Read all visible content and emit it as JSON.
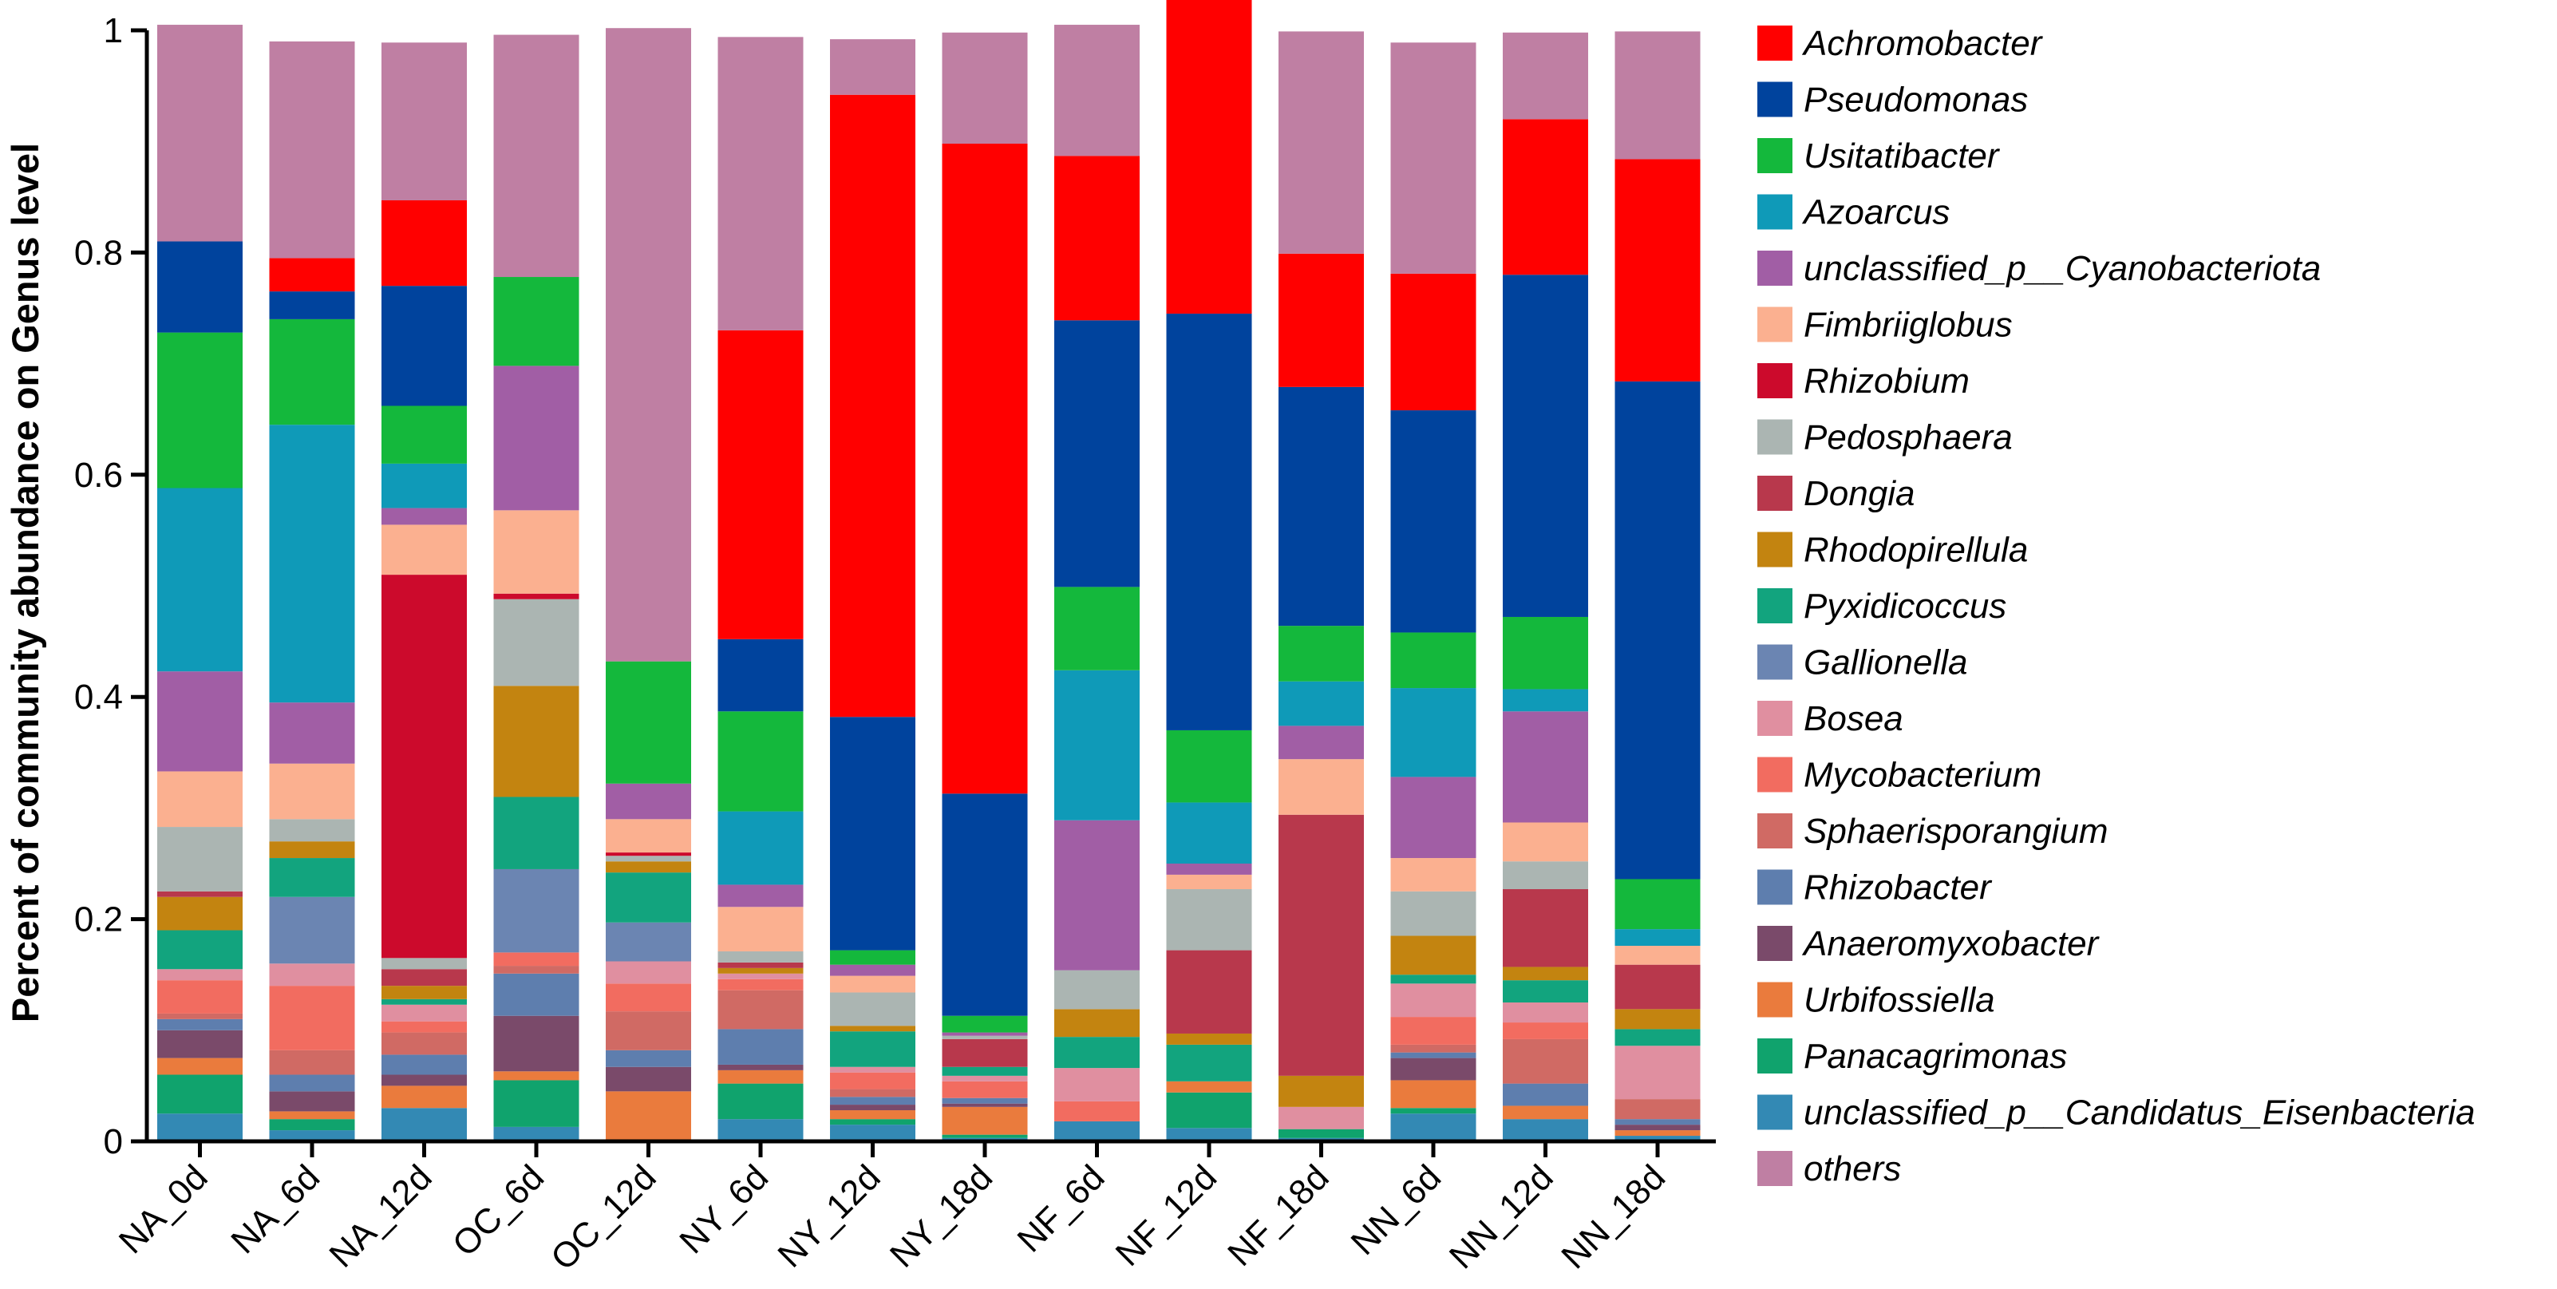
{
  "chart_data": {
    "type": "bar",
    "stacked": true,
    "title": "",
    "xlabel": "",
    "ylabel": "Percent of community abundance on Genus level",
    "ylim": [
      0,
      1
    ],
    "yticks": [
      0,
      0.2,
      0.4,
      0.6,
      0.8,
      1
    ],
    "ytick_labels": [
      "0",
      "0.2",
      "0.4",
      "0.6",
      "0.8",
      "1"
    ],
    "legend_position": "right",
    "categories": [
      "NA_0d",
      "NA_6d",
      "NA_12d",
      "OC_6d",
      "OC_12d",
      "NY_6d",
      "NY_12d",
      "NY_18d",
      "NF_6d",
      "NF_12d",
      "NF_18d",
      "NN_6d",
      "NN_12d",
      "NN_18d"
    ],
    "series": [
      {
        "name": "unclassified_p__Candidatus_Eisenbacteria",
        "color": "#3389b4",
        "values": [
          0.025,
          0.01,
          0.03,
          0.013,
          0.0,
          0.02,
          0.015,
          0.003,
          0.018,
          0.012,
          0.003,
          0.025,
          0.02,
          0.005
        ]
      },
      {
        "name": "Panacagrimonas",
        "color": "#10a36d",
        "values": [
          0.035,
          0.01,
          0.0,
          0.042,
          0.0,
          0.032,
          0.005,
          0.003,
          0.0,
          0.032,
          0.008,
          0.005,
          0.0,
          0.0
        ]
      },
      {
        "name": "Urbifossiella",
        "color": "#ea7b3d",
        "values": [
          0.015,
          0.007,
          0.02,
          0.008,
          0.045,
          0.012,
          0.008,
          0.025,
          0.0,
          0.01,
          0.0,
          0.025,
          0.012,
          0.005
        ]
      },
      {
        "name": "Anaeromyxobacter",
        "color": "#7a4a6a",
        "values": [
          0.025,
          0.018,
          0.01,
          0.05,
          0.022,
          0.005,
          0.005,
          0.003,
          0.0,
          0.0,
          0.0,
          0.02,
          0.0,
          0.005
        ]
      },
      {
        "name": "Rhizobacter",
        "color": "#5e7eae",
        "values": [
          0.01,
          0.015,
          0.018,
          0.038,
          0.015,
          0.032,
          0.007,
          0.005,
          0.0,
          0.0,
          0.0,
          0.005,
          0.02,
          0.005
        ]
      },
      {
        "name": "Sphaerisporangium",
        "color": "#d06a64",
        "values": [
          0.005,
          0.022,
          0.02,
          0.007,
          0.035,
          0.035,
          0.007,
          0.0,
          0.0,
          0.0,
          0.0,
          0.007,
          0.04,
          0.018
        ]
      },
      {
        "name": "Mycobacterium",
        "color": "#f26c60",
        "values": [
          0.03,
          0.058,
          0.01,
          0.012,
          0.025,
          0.01,
          0.015,
          0.015,
          0.018,
          0.0,
          0.0,
          0.025,
          0.015,
          0.0
        ]
      },
      {
        "name": "Bosea",
        "color": "#e08fa0",
        "values": [
          0.01,
          0.02,
          0.015,
          0.0,
          0.02,
          0.005,
          0.005,
          0.005,
          0.03,
          0.0,
          0.02,
          0.03,
          0.018,
          0.048
        ]
      },
      {
        "name": "Gallionella",
        "color": "#6b85b2",
        "values": [
          0.0,
          0.06,
          0.0,
          0.075,
          0.035,
          0.0,
          0.0,
          0.0,
          0.0,
          0.0,
          0.0,
          0.0,
          0.0,
          0.0
        ]
      },
      {
        "name": "Pyxidicoccus",
        "color": "#12a47e",
        "values": [
          0.035,
          0.035,
          0.005,
          0.065,
          0.045,
          0.0,
          0.032,
          0.008,
          0.028,
          0.033,
          0.0,
          0.008,
          0.02,
          0.015
        ]
      },
      {
        "name": "Rhodopirellula",
        "color": "#c38410",
        "values": [
          0.03,
          0.015,
          0.012,
          0.1,
          0.01,
          0.005,
          0.005,
          0.0,
          0.025,
          0.01,
          0.028,
          0.035,
          0.012,
          0.018
        ]
      },
      {
        "name": "Dongia",
        "color": "#b8384c",
        "values": [
          0.005,
          0.0,
          0.015,
          0.0,
          0.0,
          0.005,
          0.0,
          0.025,
          0.0,
          0.075,
          0.235,
          0.0,
          0.07,
          0.04
        ]
      },
      {
        "name": "Pedosphaera",
        "color": "#abb5b2",
        "values": [
          0.058,
          0.02,
          0.01,
          0.078,
          0.005,
          0.01,
          0.03,
          0.003,
          0.035,
          0.055,
          0.0,
          0.04,
          0.025,
          0.0
        ]
      },
      {
        "name": "Rhizobium",
        "color": "#cc0a2c",
        "values": [
          0.0,
          0.0,
          0.345,
          0.005,
          0.003,
          0.0,
          0.0,
          0.0,
          0.0,
          0.0,
          0.0,
          0.0,
          0.0,
          0.0
        ]
      },
      {
        "name": "Fimbriiglobus",
        "color": "#fbb090",
        "values": [
          0.05,
          0.05,
          0.045,
          0.075,
          0.03,
          0.04,
          0.015,
          0.0,
          0.0,
          0.013,
          0.05,
          0.03,
          0.035,
          0.017
        ]
      },
      {
        "name": "unclassified_p__Cyanobacteriota",
        "color": "#a15ea5",
        "values": [
          0.09,
          0.055,
          0.015,
          0.13,
          0.032,
          0.02,
          0.01,
          0.003,
          0.135,
          0.01,
          0.03,
          0.073,
          0.1,
          0.0
        ]
      },
      {
        "name": "Azoarcus",
        "color": "#0f9ab8",
        "values": [
          0.165,
          0.25,
          0.04,
          0.0,
          0.0,
          0.066,
          0.0,
          0.0,
          0.135,
          0.055,
          0.04,
          0.08,
          0.02,
          0.015
        ]
      },
      {
        "name": "Usitatibacter",
        "color": "#14b83c",
        "values": [
          0.14,
          0.095,
          0.052,
          0.08,
          0.11,
          0.09,
          0.013,
          0.015,
          0.075,
          0.065,
          0.05,
          0.05,
          0.065,
          0.045
        ]
      },
      {
        "name": "Pseudomonas",
        "color": "#00439d",
        "values": [
          0.082,
          0.025,
          0.108,
          0.0,
          0.0,
          0.065,
          0.21,
          0.2,
          0.24,
          0.375,
          0.215,
          0.2,
          0.308,
          0.448
        ]
      },
      {
        "name": "Achromobacter",
        "color": "#ff0000",
        "values": [
          0.0,
          0.03,
          0.077,
          0.0,
          0.0,
          0.278,
          0.56,
          0.585,
          0.148,
          0.29,
          0.12,
          0.123,
          0.14,
          0.2
        ]
      },
      {
        "name": "others",
        "color": "#bf7fa3",
        "values": [
          0.195,
          0.195,
          0.142,
          0.218,
          0.57,
          0.264,
          0.05,
          0.1,
          0.118,
          0.006,
          0.2,
          0.208,
          0.078,
          0.115
        ]
      }
    ],
    "legend_order": [
      "Achromobacter",
      "Pseudomonas",
      "Usitatibacter",
      "Azoarcus",
      "unclassified_p__Cyanobacteriota",
      "Fimbriiglobus",
      "Rhizobium",
      "Pedosphaera",
      "Dongia",
      "Rhodopirellula",
      "Pyxidicoccus",
      "Gallionella",
      "Bosea",
      "Mycobacterium",
      "Sphaerisporangium",
      "Rhizobacter",
      "Anaeromyxobacter",
      "Urbifossiella",
      "Panacagrimonas",
      "unclassified_p__Candidatus_Eisenbacteria",
      "others"
    ]
  }
}
